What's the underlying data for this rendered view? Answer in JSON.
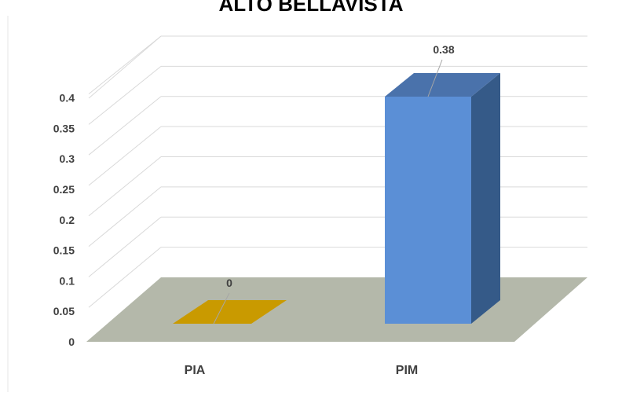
{
  "chart_data": {
    "type": "bar",
    "title": "ALTO BELLAVISTA",
    "categories": [
      "PIA",
      "PIM"
    ],
    "values": [
      0,
      0.38
    ],
    "value_labels": [
      "0",
      "0.38"
    ],
    "ylim": [
      0,
      0.4
    ],
    "yticks": [
      "0",
      "0.05",
      "0.1",
      "0.15",
      "0.2",
      "0.25",
      "0.3",
      "0.35",
      "0.4"
    ],
    "grid": true,
    "style": "3d-column",
    "colors": {
      "bars": [
        "#c99a00",
        "#5b8fd6"
      ],
      "bar_sides": [
        "#a07800",
        "#355a88"
      ],
      "bar_tops": [
        "#d6a500",
        "#4a72ab"
      ],
      "floor": "#b4b8aa",
      "grid": "#d9d9d9"
    }
  }
}
